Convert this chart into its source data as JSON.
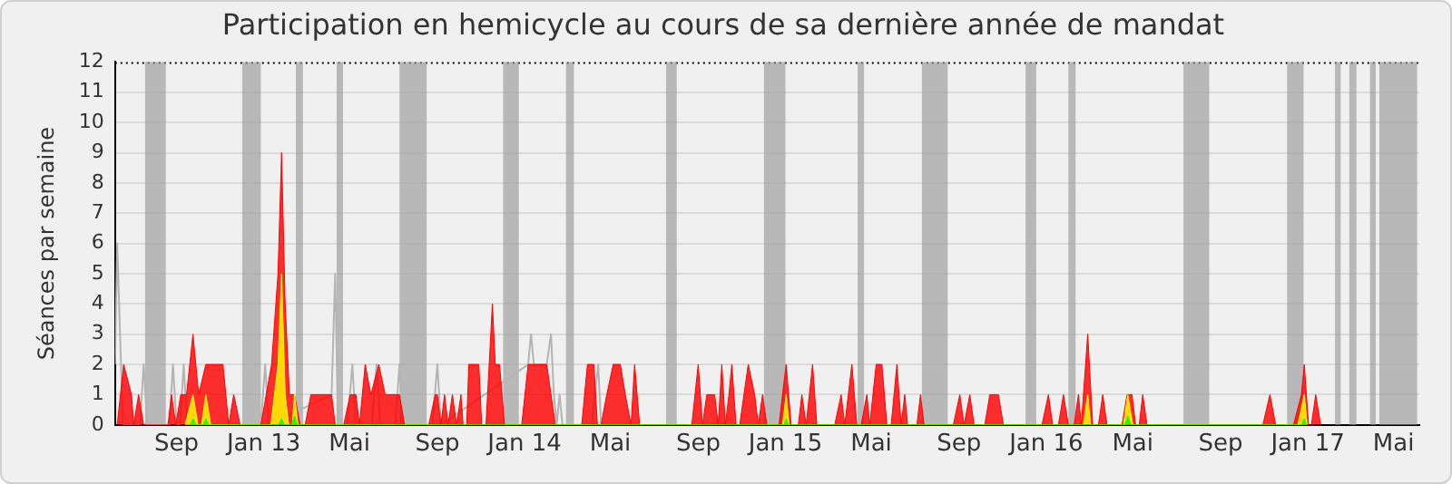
{
  "chart_data": {
    "type": "area",
    "title": "Participation en hemicycle au cours de sa dernière année de mandat",
    "ylabel": "Séances par semaine",
    "xlim": [
      "2012-06-07",
      "2017-06-06"
    ],
    "ylim": [
      0,
      12
    ],
    "yticks": [
      0,
      1,
      2,
      3,
      4,
      5,
      6,
      7,
      8,
      9,
      10,
      11,
      12
    ],
    "xticks": [
      {
        "value": "2012-09-01",
        "label": "Sep"
      },
      {
        "value": "2013-01-01",
        "label": "Jan 13"
      },
      {
        "value": "2013-05-01",
        "label": "Mai"
      },
      {
        "value": "2013-09-01",
        "label": "Sep"
      },
      {
        "value": "2014-01-01",
        "label": "Jan 14"
      },
      {
        "value": "2014-05-01",
        "label": "Mai"
      },
      {
        "value": "2014-09-01",
        "label": "Sep"
      },
      {
        "value": "2015-01-01",
        "label": "Jan 15"
      },
      {
        "value": "2015-05-01",
        "label": "Mai"
      },
      {
        "value": "2015-09-01",
        "label": "Sep"
      },
      {
        "value": "2016-01-01",
        "label": "Jan 16"
      },
      {
        "value": "2016-05-01",
        "label": "Mai"
      },
      {
        "value": "2016-09-01",
        "label": "Sep"
      },
      {
        "value": "2017-01-01",
        "label": "Jan 17"
      },
      {
        "value": "2017-05-01",
        "label": "Mai"
      }
    ],
    "grid": "y",
    "marker": "none",
    "bands": [
      {
        "axis": "x",
        "from": "2012-07-19",
        "to": "2012-08-17",
        "color": "#a0a0a0"
      },
      {
        "axis": "x",
        "from": "2012-12-02",
        "to": "2012-12-28",
        "color": "#a0a0a0"
      },
      {
        "axis": "x",
        "from": "2013-02-15",
        "to": "2013-02-25",
        "color": "#a0a0a0"
      },
      {
        "axis": "x",
        "from": "2013-04-13",
        "to": "2013-04-22",
        "color": "#a0a0a0"
      },
      {
        "axis": "x",
        "from": "2013-07-10",
        "to": "2013-08-17",
        "color": "#a0a0a0"
      },
      {
        "axis": "x",
        "from": "2013-12-02",
        "to": "2013-12-24",
        "color": "#a0a0a0"
      },
      {
        "axis": "x",
        "from": "2014-02-28",
        "to": "2014-03-11",
        "color": "#a0a0a0"
      },
      {
        "axis": "x",
        "from": "2014-07-18",
        "to": "2014-08-02",
        "color": "#a0a0a0"
      },
      {
        "axis": "x",
        "from": "2014-12-02",
        "to": "2015-01-01",
        "color": "#a0a0a0"
      },
      {
        "axis": "x",
        "from": "2015-04-12",
        "to": "2015-04-21",
        "color": "#a0a0a0"
      },
      {
        "axis": "x",
        "from": "2015-07-11",
        "to": "2015-08-16",
        "color": "#a0a0a0"
      },
      {
        "axis": "x",
        "from": "2015-12-03",
        "to": "2015-12-18",
        "color": "#a0a0a0"
      },
      {
        "axis": "x",
        "from": "2016-02-01",
        "to": "2016-02-11",
        "color": "#a0a0a0"
      },
      {
        "axis": "x",
        "from": "2016-07-11",
        "to": "2016-08-16",
        "color": "#a0a0a0"
      },
      {
        "axis": "x",
        "from": "2016-12-03",
        "to": "2016-12-26",
        "color": "#a0a0a0"
      },
      {
        "axis": "x",
        "from": "2017-02-08",
        "to": "2017-02-16",
        "color": "#a0a0a0"
      },
      {
        "axis": "x",
        "from": "2017-02-28",
        "to": "2017-03-10",
        "color": "#a0a0a0"
      },
      {
        "axis": "x",
        "from": "2017-03-29",
        "to": "2017-04-06",
        "color": "#a0a0a0"
      },
      {
        "axis": "x",
        "from": "2017-04-11",
        "to": "2017-06-03",
        "color": "#a0a0a0"
      }
    ],
    "series": [
      {
        "type": "line",
        "color": "#b4b4b4",
        "x": [
          "2012-06-07",
          "2012-06-10",
          "2012-06-18",
          "2012-07-12",
          "2012-07-17",
          "2012-07-22",
          "2012-08-22",
          "2012-08-27",
          "2012-09-01",
          "2012-09-06",
          "2012-09-11",
          "2012-09-16",
          "2012-12-28",
          "2013-01-03",
          "2013-01-08",
          "2013-04-06",
          "2013-04-11",
          "2013-04-15",
          "2013-04-28",
          "2013-05-05",
          "2013-05-10",
          "2013-06-01",
          "2013-06-08",
          "2013-06-13",
          "2013-07-04",
          "2013-07-10",
          "2013-07-15",
          "2013-08-25",
          "2013-09-01",
          "2013-09-06",
          "2014-01-06",
          "2014-01-10",
          "2014-01-14",
          "2014-02-01",
          "2014-02-07",
          "2014-02-11",
          "2014-02-15",
          "2014-02-19",
          "2014-02-23",
          "2014-04-05",
          "2014-04-14",
          "2014-04-18"
        ],
        "values": [
          2,
          6,
          0,
          0,
          2,
          0,
          0,
          2,
          0,
          0,
          2,
          0,
          0,
          2,
          0,
          1,
          5,
          0,
          0,
          2,
          0,
          0,
          2,
          0,
          0,
          2,
          0,
          0,
          2,
          0,
          2,
          3,
          2,
          2,
          3,
          1,
          0,
          1,
          0,
          0,
          2,
          0
        ]
      },
      {
        "type": "area",
        "color": "#ff0000",
        "x": [
          "2012-06-10",
          "2012-06-19",
          "2012-06-30",
          "2012-07-03",
          "2012-07-10",
          "2012-07-17",
          "2012-08-20",
          "2012-08-25",
          "2012-08-31",
          "2012-09-07",
          "2012-09-15",
          "2012-09-24",
          "2012-10-02",
          "2012-10-12",
          "2012-11-05",
          "2012-11-13",
          "2012-11-20",
          "2012-11-29",
          "2012-12-28",
          "2013-01-12",
          "2013-01-21",
          "2013-01-26",
          "2013-01-31",
          "2013-02-06",
          "2013-02-13",
          "2013-02-21",
          "2013-02-28",
          "2013-03-08",
          "2013-04-06",
          "2013-04-11",
          "2013-04-23",
          "2013-05-02",
          "2013-05-10",
          "2013-05-15",
          "2013-05-23",
          "2013-05-31",
          "2013-06-11",
          "2013-06-20",
          "2013-07-10",
          "2013-07-17",
          "2013-08-20",
          "2013-08-29",
          "2013-09-01",
          "2013-09-06",
          "2013-09-11",
          "2013-09-16",
          "2013-09-22",
          "2013-09-28",
          "2013-10-04",
          "2013-10-07",
          "2013-10-12",
          "2013-10-15",
          "2013-10-29",
          "2013-11-02",
          "2013-11-08",
          "2013-11-17",
          "2013-11-21",
          "2013-11-27",
          "2013-12-04",
          "2013-12-28",
          "2014-01-06",
          "2014-02-01",
          "2014-02-13",
          "2014-03-22",
          "2014-03-30",
          "2014-04-08",
          "2014-04-13",
          "2014-04-18",
          "2014-04-26",
          "2014-05-05",
          "2014-05-15",
          "2014-05-22",
          "2014-05-30",
          "2014-06-04",
          "2014-06-11",
          "2014-08-23",
          "2014-09-01",
          "2014-09-07",
          "2014-09-13",
          "2014-09-24",
          "2014-09-29",
          "2014-10-04",
          "2014-10-09",
          "2014-10-14",
          "2014-10-18",
          "2014-10-24",
          "2014-10-29",
          "2014-11-10",
          "2014-11-19",
          "2014-11-24",
          "2014-11-30",
          "2014-12-06",
          "2014-12-23",
          "2015-01-02",
          "2015-01-09",
          "2015-01-19",
          "2015-01-24",
          "2015-01-30",
          "2015-02-08",
          "2015-02-14",
          "2015-03-11",
          "2015-03-20",
          "2015-03-25",
          "2015-04-04",
          "2015-04-11",
          "2015-04-17",
          "2015-04-25",
          "2015-04-29",
          "2015-05-08",
          "2015-05-16",
          "2015-05-23",
          "2015-05-29",
          "2015-06-06",
          "2015-06-12",
          "2015-06-17",
          "2015-06-21",
          "2015-07-04",
          "2015-07-09",
          "2015-07-14",
          "2015-08-24",
          "2015-09-02",
          "2015-09-08",
          "2015-09-16",
          "2015-09-22",
          "2015-10-07",
          "2015-10-14",
          "2015-10-26",
          "2015-11-02",
          "2015-12-26",
          "2016-01-04",
          "2016-01-10",
          "2016-01-18",
          "2016-01-25",
          "2016-02-01",
          "2016-02-09",
          "2016-02-15",
          "2016-02-19",
          "2016-02-28",
          "2016-03-06",
          "2016-03-14",
          "2016-03-20",
          "2016-03-26",
          "2016-04-16",
          "2016-04-23",
          "2016-04-30",
          "2016-05-05",
          "2016-05-10",
          "2016-05-15",
          "2016-05-21",
          "2016-10-30",
          "2016-11-09",
          "2016-11-17",
          "2016-12-12",
          "2016-12-23",
          "2016-12-27",
          "2017-01-02",
          "2017-01-06",
          "2017-01-12",
          "2017-01-19"
        ],
        "values": [
          0,
          2,
          1,
          0,
          1,
          0,
          0,
          1,
          0,
          1,
          1,
          3,
          1,
          2,
          2,
          0,
          1,
          0,
          0,
          2,
          5,
          9,
          4,
          1,
          1,
          0,
          0,
          1,
          1,
          0,
          0,
          1,
          1,
          0,
          2,
          1,
          2,
          1,
          1,
          0,
          0,
          1,
          1,
          0,
          1,
          0,
          1,
          0,
          1,
          0,
          0,
          2,
          2,
          0,
          0,
          4,
          2,
          2,
          0,
          0,
          2,
          2,
          0,
          0,
          2,
          2,
          0,
          0,
          1,
          2,
          2,
          1,
          0,
          2,
          0,
          0,
          2,
          0,
          1,
          1,
          0,
          2,
          0,
          1,
          2,
          0,
          0,
          2,
          1,
          0,
          1,
          0,
          0,
          2,
          0,
          0,
          1,
          0,
          2,
          0,
          0,
          1,
          0,
          2,
          0,
          0,
          1,
          0,
          2,
          2,
          0,
          0,
          2,
          0,
          1,
          0,
          0,
          1,
          0,
          0,
          1,
          0,
          1,
          0,
          0,
          1,
          1,
          0,
          0,
          1,
          0,
          0,
          1,
          0,
          0,
          1,
          0,
          3,
          0,
          0,
          1,
          0,
          0,
          1,
          1,
          0,
          0,
          1,
          0,
          0,
          1,
          0,
          0,
          1,
          2,
          0,
          0,
          1,
          0
        ]
      },
      {
        "type": "area",
        "color": "#ffff00",
        "x": [
          "2012-09-13",
          "2012-09-24",
          "2012-10-01",
          "2012-10-06",
          "2012-10-12",
          "2012-10-19",
          "2013-01-11",
          "2013-01-21",
          "2013-01-26",
          "2013-01-31",
          "2013-02-05",
          "2013-02-10",
          "2013-02-13",
          "2013-02-18",
          "2014-12-28",
          "2015-01-02",
          "2015-01-06",
          "2016-02-22",
          "2016-02-28",
          "2016-03-03",
          "2016-04-18",
          "2016-04-24",
          "2016-05-01",
          "2016-12-18",
          "2016-12-27",
          "2016-12-31"
        ],
        "values": [
          0,
          1,
          0,
          0,
          1,
          0,
          0,
          2,
          5,
          1,
          0,
          0,
          1,
          0,
          0,
          1,
          0,
          0,
          1,
          0,
          0,
          1,
          0,
          0,
          1,
          0
        ]
      },
      {
        "type": "area",
        "color": "#00ff00",
        "x": [
          "2012-09-20",
          "2012-09-24",
          "2012-09-28",
          "2012-10-08",
          "2012-10-12",
          "2012-10-16",
          "2013-01-22",
          "2013-01-26",
          "2013-01-30",
          "2013-02-09",
          "2013-02-13",
          "2013-02-17",
          "2014-12-30",
          "2015-01-02",
          "2015-01-05",
          "2016-04-20",
          "2016-04-24",
          "2016-04-28",
          "2016-12-23",
          "2016-12-27",
          "2016-12-30"
        ],
        "values": [
          0,
          0.2,
          0,
          0,
          0.2,
          0,
          0,
          0.2,
          0,
          0,
          0.3,
          0,
          0,
          0.2,
          0,
          0,
          0.3,
          0,
          0,
          0.2,
          0
        ]
      }
    ]
  }
}
